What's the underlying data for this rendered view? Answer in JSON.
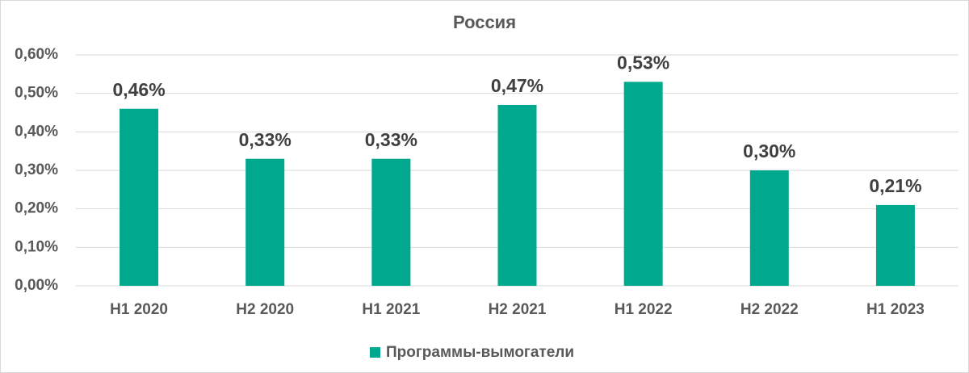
{
  "chart_data": {
    "type": "bar",
    "title": "Россия",
    "categories": [
      "H1 2020",
      "H2 2020",
      "H1 2021",
      "H2 2021",
      "H1 2022",
      "H2 2022",
      "H1 2023"
    ],
    "series": [
      {
        "name": "Программы-вымогатели",
        "color": "#00a88e",
        "values": [
          0.46,
          0.33,
          0.33,
          0.47,
          0.53,
          0.3,
          0.21
        ],
        "value_labels": [
          "0,46%",
          "0,33%",
          "0,33%",
          "0,47%",
          "0,53%",
          "0,30%",
          "0,21%"
        ]
      }
    ],
    "ylim": [
      0,
      0.6
    ],
    "yticks": [
      {
        "value": 0,
        "label": "0,00%"
      },
      {
        "value": 0.1,
        "label": "0,10%"
      },
      {
        "value": 0.2,
        "label": "0,20%"
      },
      {
        "value": 0.3,
        "label": "0,30%"
      },
      {
        "value": 0.4,
        "label": "0,40%"
      },
      {
        "value": 0.5,
        "label": "0,50%"
      },
      {
        "value": 0.6,
        "label": "0,60%"
      }
    ],
    "grid": true,
    "legend": "bottom"
  }
}
